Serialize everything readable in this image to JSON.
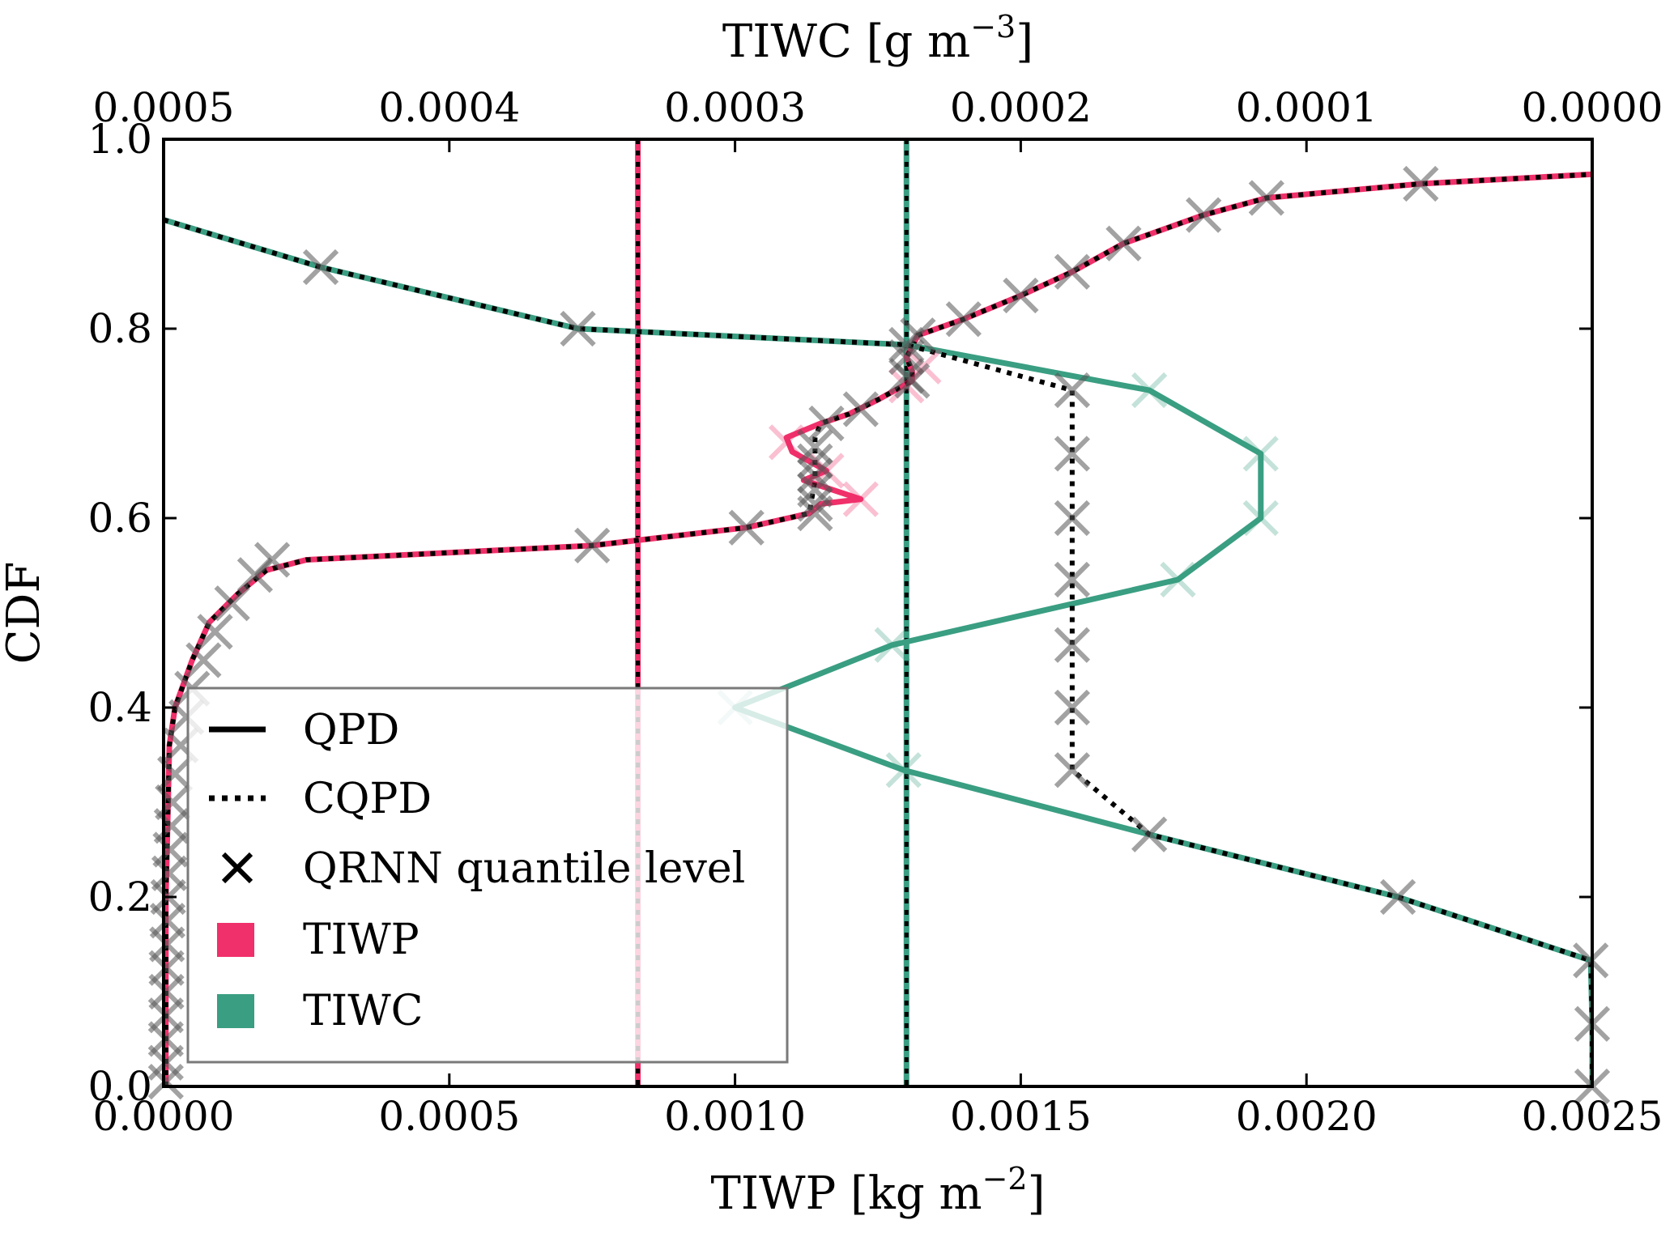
{
  "chart_data": {
    "type": "line",
    "xlabel_bottom": "TIWP [kg m",
    "xlabel_bottom_exp": "−2",
    "xlabel_bottom_close": "]",
    "xlabel_top": "TIWC [g m",
    "xlabel_top_exp": "−3",
    "xlabel_top_close": "]",
    "ylabel": "CDF",
    "xlim_bottom": [
      0,
      0.0025
    ],
    "xlim_top": [
      0.0005,
      0.0
    ],
    "ylim": [
      0,
      1
    ],
    "bottom_ticks": [
      {
        "value": 0.0,
        "label": "0.0000"
      },
      {
        "value": 0.0005,
        "label": "0.0005"
      },
      {
        "value": 0.001,
        "label": "0.0010"
      },
      {
        "value": 0.0015,
        "label": "0.0015"
      },
      {
        "value": 0.002,
        "label": "0.0020"
      },
      {
        "value": 0.0025,
        "label": "0.0025"
      }
    ],
    "top_ticks": [
      {
        "value": 0.0005,
        "label": "0.0005"
      },
      {
        "value": 0.0004,
        "label": "0.0004"
      },
      {
        "value": 0.0003,
        "label": "0.0003"
      },
      {
        "value": 0.0002,
        "label": "0.0002"
      },
      {
        "value": 0.0001,
        "label": "0.0001"
      },
      {
        "value": 0.0,
        "label": "0.0000"
      }
    ],
    "y_ticks": [
      {
        "value": 0.0,
        "label": "0.0"
      },
      {
        "value": 0.2,
        "label": "0.2"
      },
      {
        "value": 0.4,
        "label": "0.4"
      },
      {
        "value": 0.6,
        "label": "0.6"
      },
      {
        "value": 0.8,
        "label": "0.8"
      },
      {
        "value": 1.0,
        "label": "1.0"
      }
    ],
    "colors": {
      "tiwp": "#f0306a",
      "tiwc": "#3a9e82",
      "cqpd": "#000000"
    },
    "reference_lines": [
      {
        "series": "TIWP",
        "axis": "bottom",
        "x": 0.00083
      },
      {
        "series": "TIWC",
        "axis": "bottom",
        "x": 0.0013
      }
    ],
    "series": [
      {
        "name": "TIWP",
        "axis": "bottom",
        "qpd": [
          [
            4e-06,
            0.0
          ],
          [
            4e-06,
            0.2
          ],
          [
            8e-06,
            0.3
          ],
          [
            1e-05,
            0.36
          ],
          [
            2e-05,
            0.4
          ],
          [
            5e-05,
            0.45
          ],
          [
            8e-05,
            0.49
          ],
          [
            0.00013,
            0.52
          ],
          [
            0.00018,
            0.545
          ],
          [
            0.00025,
            0.556
          ],
          [
            0.00075,
            0.571
          ],
          [
            0.00102,
            0.59
          ],
          [
            0.00113,
            0.605
          ],
          [
            0.00115,
            0.615
          ],
          [
            0.00122,
            0.62
          ],
          [
            0.00112,
            0.64
          ],
          [
            0.00116,
            0.65
          ],
          [
            0.0011,
            0.67
          ],
          [
            0.00109,
            0.685
          ],
          [
            0.00115,
            0.7
          ],
          [
            0.0012,
            0.71
          ],
          [
            0.00125,
            0.725
          ],
          [
            0.00131,
            0.745
          ],
          [
            0.00131,
            0.755
          ],
          [
            0.0013,
            0.77
          ],
          [
            0.00132,
            0.793
          ],
          [
            0.0014,
            0.81
          ],
          [
            0.0015,
            0.835
          ],
          [
            0.00159,
            0.86
          ],
          [
            0.00168,
            0.89
          ],
          [
            0.00182,
            0.92
          ],
          [
            0.00193,
            0.938
          ],
          [
            0.0022,
            0.953
          ],
          [
            0.0025,
            0.963
          ]
        ],
        "cqpd": [
          [
            4e-06,
            0.0
          ],
          [
            4e-06,
            0.2
          ],
          [
            8e-06,
            0.3
          ],
          [
            1e-05,
            0.36
          ],
          [
            2e-05,
            0.4
          ],
          [
            5e-05,
            0.45
          ],
          [
            8e-05,
            0.49
          ],
          [
            0.00013,
            0.52
          ],
          [
            0.00018,
            0.545
          ],
          [
            0.00025,
            0.556
          ],
          [
            0.00075,
            0.571
          ],
          [
            0.00102,
            0.59
          ],
          [
            0.00113,
            0.605
          ],
          [
            0.00114,
            0.64
          ],
          [
            0.00114,
            0.685
          ],
          [
            0.00115,
            0.7
          ],
          [
            0.0012,
            0.71
          ],
          [
            0.00125,
            0.725
          ],
          [
            0.00131,
            0.745
          ],
          [
            0.00131,
            0.755
          ],
          [
            0.0013,
            0.77
          ],
          [
            0.00132,
            0.793
          ],
          [
            0.0014,
            0.81
          ],
          [
            0.0015,
            0.835
          ],
          [
            0.00159,
            0.86
          ],
          [
            0.00168,
            0.89
          ],
          [
            0.00182,
            0.92
          ],
          [
            0.00193,
            0.938
          ],
          [
            0.0022,
            0.953
          ],
          [
            0.0025,
            0.963
          ]
        ],
        "markers": [
          [
            4e-06,
            0.005
          ],
          [
            4e-06,
            0.025
          ],
          [
            4e-06,
            0.05
          ],
          [
            4e-06,
            0.075
          ],
          [
            5e-06,
            0.1
          ],
          [
            5e-06,
            0.125
          ],
          [
            6e-06,
            0.15
          ],
          [
            7e-06,
            0.175
          ],
          [
            8e-06,
            0.2
          ],
          [
            1e-05,
            0.225
          ],
          [
            1.2e-05,
            0.25
          ],
          [
            1.4e-05,
            0.275
          ],
          [
            1.6e-05,
            0.3
          ],
          [
            2e-05,
            0.33
          ],
          [
            3e-05,
            0.36
          ],
          [
            4e-05,
            0.39
          ],
          [
            5e-05,
            0.42
          ],
          [
            7e-05,
            0.45
          ],
          [
            9e-05,
            0.48
          ],
          [
            0.00012,
            0.51
          ],
          [
            0.00016,
            0.54
          ],
          [
            0.00019,
            0.556
          ],
          [
            0.00075,
            0.571
          ],
          [
            0.00102,
            0.59
          ],
          [
            0.00114,
            0.605
          ],
          [
            0.00114,
            0.615
          ],
          [
            0.00114,
            0.63
          ],
          [
            0.00114,
            0.645
          ],
          [
            0.00114,
            0.66
          ],
          [
            0.00114,
            0.675
          ],
          [
            0.00116,
            0.7
          ],
          [
            0.00122,
            0.715
          ],
          [
            0.00131,
            0.745
          ],
          [
            0.0013,
            0.77
          ],
          [
            0.00132,
            0.793
          ],
          [
            0.0014,
            0.81
          ],
          [
            0.0015,
            0.835
          ],
          [
            0.00159,
            0.86
          ],
          [
            0.00168,
            0.89
          ],
          [
            0.00182,
            0.92
          ],
          [
            0.00193,
            0.938
          ],
          [
            0.0022,
            0.953
          ]
        ],
        "faded_markers": [
          [
            0.00109,
            0.68
          ],
          [
            0.00122,
            0.62
          ],
          [
            0.00116,
            0.65
          ],
          [
            0.00133,
            0.76
          ],
          [
            0.0013,
            0.74
          ]
        ]
      },
      {
        "name": "TIWC",
        "axis": "top",
        "qpd": [
          [
            0.0005,
            0.915
          ],
          [
            0.000445,
            0.865
          ],
          [
            0.000355,
            0.8
          ],
          [
            0.00024,
            0.783
          ],
          [
            0.000155,
            0.735
          ],
          [
            0.000116,
            0.668
          ],
          [
            0.000116,
            0.6
          ],
          [
            0.000145,
            0.535
          ],
          [
            0.000245,
            0.466
          ],
          [
            0.0003,
            0.4
          ],
          [
            0.000241,
            0.334
          ],
          [
            0.000155,
            0.266
          ],
          [
            6.8e-05,
            0.2
          ],
          [
            5e-07,
            0.133
          ],
          [
            0.0,
            0.066
          ],
          [
            0.0,
            0.0
          ]
        ],
        "cqpd": [
          [
            0.0005,
            0.915
          ],
          [
            0.000445,
            0.865
          ],
          [
            0.000355,
            0.8
          ],
          [
            0.00024,
            0.783
          ],
          [
            0.000182,
            0.735
          ],
          [
            0.000182,
            0.668
          ],
          [
            0.000182,
            0.6
          ],
          [
            0.000182,
            0.535
          ],
          [
            0.000182,
            0.466
          ],
          [
            0.000182,
            0.4
          ],
          [
            0.000182,
            0.334
          ],
          [
            0.000155,
            0.266
          ],
          [
            6.8e-05,
            0.2
          ],
          [
            5e-07,
            0.133
          ],
          [
            0.0,
            0.066
          ],
          [
            0.0,
            0.0
          ]
        ],
        "markers": [
          [
            0.000445,
            0.865
          ],
          [
            0.000355,
            0.8
          ],
          [
            0.00024,
            0.783
          ],
          [
            0.00024,
            0.75
          ],
          [
            0.000182,
            0.735
          ],
          [
            0.000182,
            0.668
          ],
          [
            0.000182,
            0.6
          ],
          [
            0.000182,
            0.535
          ],
          [
            0.000182,
            0.466
          ],
          [
            0.000182,
            0.4
          ],
          [
            0.000182,
            0.334
          ],
          [
            0.000155,
            0.266
          ],
          [
            6.8e-05,
            0.2
          ],
          [
            5e-07,
            0.133
          ],
          [
            0.0,
            0.066
          ],
          [
            0.0,
            0.0
          ]
        ],
        "faded_markers": [
          [
            0.000155,
            0.735
          ],
          [
            0.000116,
            0.668
          ],
          [
            0.000116,
            0.6
          ],
          [
            0.000145,
            0.535
          ],
          [
            0.000245,
            0.466
          ],
          [
            0.0003,
            0.4
          ],
          [
            0.000241,
            0.334
          ]
        ]
      }
    ],
    "legend": {
      "placement": "lower-left",
      "entries": [
        {
          "label": "QPD",
          "kind": "solid-line"
        },
        {
          "label": "CQPD",
          "kind": "dotted-line"
        },
        {
          "label": "QRNN quantile level",
          "kind": "cross"
        },
        {
          "label": "TIWP",
          "kind": "patch",
          "color": "#f0306a"
        },
        {
          "label": "TIWC",
          "kind": "patch",
          "color": "#3a9e82"
        }
      ]
    }
  }
}
